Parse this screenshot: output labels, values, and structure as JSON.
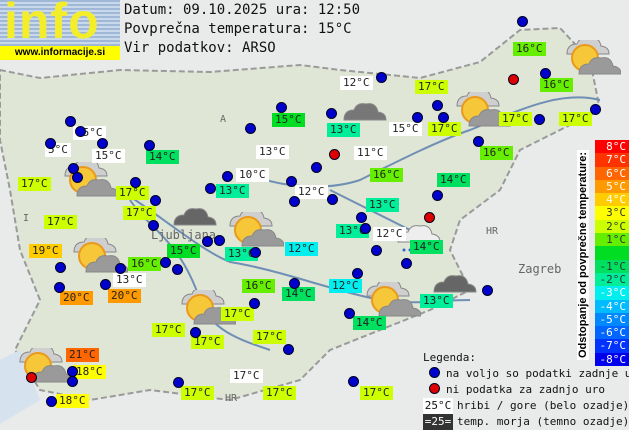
{
  "header": {
    "logo_text": "info",
    "logo_url": "www.informacije.si",
    "date_line": "Datum: 09.10.2025 ura: 12:50",
    "avg_temp_line": "Povprečna temperatura: 15°C",
    "source_line": "Vir podatkov: ARSO"
  },
  "map": {
    "region_labels": [
      "A",
      "I",
      "HR",
      "HR",
      "Ljubljana",
      "Zagreb"
    ],
    "stations": [
      {
        "temp": "16°C",
        "dev": 1
      },
      {
        "temp": "12°C",
        "dev": "mountain"
      },
      {
        "temp": "17°C",
        "dev": 2
      },
      {
        "temp": "16°C",
        "dev": 1
      },
      {
        "temp": "15°C",
        "dev": "mountain"
      },
      {
        "temp": "15°C",
        "dev": 0
      },
      {
        "temp": "13°C",
        "dev": -2
      },
      {
        "temp": "15°C",
        "dev": "mountain"
      },
      {
        "temp": "17°C",
        "dev": 2
      },
      {
        "temp": "17°C",
        "dev": 2
      },
      {
        "temp": "17°C",
        "dev": 2
      },
      {
        "temp": "5°C",
        "dev": "mountain"
      },
      {
        "temp": "15°C",
        "dev": "mountain"
      },
      {
        "temp": "14°C",
        "dev": -1
      },
      {
        "temp": "13°C",
        "dev": "mountain"
      },
      {
        "temp": "11°C",
        "dev": "mountain"
      },
      {
        "temp": "16°C",
        "dev": 1
      },
      {
        "temp": "17°C",
        "dev": 2
      },
      {
        "temp": "10°C",
        "dev": "mountain"
      },
      {
        "temp": "16°C",
        "dev": 1
      },
      {
        "temp": "14°C",
        "dev": -1
      },
      {
        "temp": "17°C",
        "dev": 2
      },
      {
        "temp": "13°C",
        "dev": -2
      },
      {
        "temp": "12°C",
        "dev": "mountain"
      },
      {
        "temp": "13°C",
        "dev": -2
      },
      {
        "temp": "17°C",
        "dev": 2
      },
      {
        "temp": "17°C",
        "dev": 2
      },
      {
        "temp": "13°C",
        "dev": -2
      },
      {
        "temp": "12°C",
        "dev": "mountain"
      },
      {
        "temp": "14°C",
        "dev": -1
      },
      {
        "temp": "19°C",
        "dev": 4
      },
      {
        "temp": "15°C",
        "dev": 0
      },
      {
        "temp": "12°C",
        "dev": -3
      },
      {
        "temp": "13°C",
        "dev": -2
      },
      {
        "temp": "16°C",
        "dev": 1
      },
      {
        "temp": "13°C",
        "dev": "mountain"
      },
      {
        "temp": "16°C",
        "dev": 1
      },
      {
        "temp": "14°C",
        "dev": -1
      },
      {
        "temp": "12°C",
        "dev": -3
      },
      {
        "temp": "13°C",
        "dev": -2
      },
      {
        "temp": "20°C",
        "dev": 5
      },
      {
        "temp": "20°C",
        "dev": 5
      },
      {
        "temp": "17°C",
        "dev": 2
      },
      {
        "temp": "14°C",
        "dev": -1
      },
      {
        "temp": "17°C",
        "dev": 2
      },
      {
        "temp": "17°C",
        "dev": 2
      },
      {
        "temp": "17°C",
        "dev": 2
      },
      {
        "temp": "21°C",
        "dev": 6
      },
      {
        "temp": "18°C",
        "dev": 3
      },
      {
        "temp": "17°C",
        "dev": "mountain"
      },
      {
        "temp": "18°C",
        "dev": 3
      },
      {
        "temp": "17°C",
        "dev": 2
      },
      {
        "temp": "17°C",
        "dev": 2
      },
      {
        "temp": "17°C",
        "dev": 2
      }
    ],
    "weather_icons": [
      "cloudy",
      "partly-cloudy",
      "partly-cloudy",
      "partly-cloudy",
      "overcast",
      "partly-cloudy",
      "rain",
      "partly-cloudy",
      "overcast",
      "partly-cloudy",
      "partly-cloudy",
      "partly-cloudy"
    ]
  },
  "scale": {
    "title": "Odstopanje od povprečne temperature:",
    "steps": [
      {
        "label": "8°C",
        "color": "#ff0000"
      },
      {
        "label": "7°C",
        "color": "#ff3300"
      },
      {
        "label": "6°C",
        "color": "#ff6600"
      },
      {
        "label": "5°C",
        "color": "#ff9900"
      },
      {
        "label": "4°C",
        "color": "#ffcc00"
      },
      {
        "label": "3°C",
        "color": "#ffff00"
      },
      {
        "label": "2°C",
        "color": "#ccff00"
      },
      {
        "label": "1°C",
        "color": "#66ee00"
      },
      {
        "label": "",
        "color": "#00dd22"
      },
      {
        "label": "-1°C",
        "color": "#00e060"
      },
      {
        "label": "-2°C",
        "color": "#00ee99"
      },
      {
        "label": "-3°C",
        "color": "#00eeee"
      },
      {
        "label": "-4°C",
        "color": "#00bbff"
      },
      {
        "label": "-5°C",
        "color": "#0088ff"
      },
      {
        "label": "-6°C",
        "color": "#0066ff"
      },
      {
        "label": "-7°C",
        "color": "#0033ff"
      },
      {
        "label": "-8°C",
        "color": "#0000ee"
      }
    ]
  },
  "legend": {
    "title": "Legenda:",
    "available": "na voljo so podatki zadnje ure",
    "unavailable": "ni podatka za zadnjo uro",
    "mountain_sample": "25°C",
    "mountain": "hribi / gore (belo ozadje)",
    "sea_sample": "=25=",
    "sea": "temp. morja (temno ozadje)"
  },
  "colors": {
    "available_dot": "#0000cc",
    "unavailable_dot": "#dd0000",
    "mountain_bg": "#ffffff",
    "sea_bg": "#333333"
  }
}
